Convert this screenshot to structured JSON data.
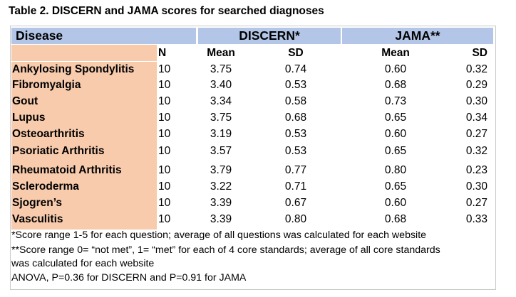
{
  "table": {
    "caption": "Table 2. DISCERN and JAMA scores for searched diagnoses",
    "headers": {
      "disease": "Disease",
      "discern": "DISCERN*",
      "jama": "JAMA**"
    },
    "subheaders": {
      "n": "N",
      "discern_mean": "Mean",
      "discern_sd": "SD",
      "jama_mean": "Mean",
      "jama_sd": "SD"
    },
    "rows": [
      {
        "disease": "Ankylosing Spondylitis",
        "n": "10",
        "discern_mean": "3.75",
        "discern_sd": "0.74",
        "jama_mean": "0.60",
        "jama_sd": "0.32"
      },
      {
        "disease": "Fibromyalgia",
        "n": "10",
        "discern_mean": "3.40",
        "discern_sd": "0.53",
        "jama_mean": "0.68",
        "jama_sd": "0.29"
      },
      {
        "disease": "Gout",
        "n": "10",
        "discern_mean": "3.34",
        "discern_sd": "0.58",
        "jama_mean": "0.73",
        "jama_sd": "0.30"
      },
      {
        "disease": "Lupus",
        "n": "10",
        "discern_mean": "3.75",
        "discern_sd": "0.68",
        "jama_mean": "0.65",
        "jama_sd": "0.34"
      },
      {
        "disease": "Osteoarthritis",
        "n": "10",
        "discern_mean": "3.19",
        "discern_sd": "0.53",
        "jama_mean": "0.60",
        "jama_sd": "0.27"
      },
      {
        "disease": "Psoriatic Arthritis",
        "n": "10",
        "discern_mean": "3.57",
        "discern_sd": "0.53",
        "jama_mean": "0.65",
        "jama_sd": "0.32"
      },
      {
        "disease": "Rheumatoid Arthritis",
        "n": "10",
        "discern_mean": "3.79",
        "discern_sd": "0.77",
        "jama_mean": "0.80",
        "jama_sd": "0.23"
      },
      {
        "disease": "Scleroderma",
        "n": "10",
        "discern_mean": "3.22",
        "discern_sd": "0.71",
        "jama_mean": "0.65",
        "jama_sd": "0.30"
      },
      {
        "disease": "Sjogren’s",
        "n": "10",
        "discern_mean": "3.39",
        "discern_sd": "0.67",
        "jama_mean": "0.60",
        "jama_sd": "0.27"
      },
      {
        "disease": "Vasculitis",
        "n": "10",
        "discern_mean": "3.39",
        "discern_sd": "0.80",
        "jama_mean": "0.68",
        "jama_sd": "0.33"
      }
    ],
    "footnotes": {
      "discern": "*Score range 1-5 for each question; average of all questions was calculated for each website",
      "jama_line1": "**Score range 0= “not met”, 1= “met” for each of 4 core standards; average of all core standards",
      "jama_line2": "was calculated for each website",
      "anova": "ANOVA, P=0.36 for DISCERN and P=0.91 for JAMA"
    },
    "colors": {
      "header_blue": "#b4c6e7",
      "disease_peach": "#f8cbad"
    }
  }
}
